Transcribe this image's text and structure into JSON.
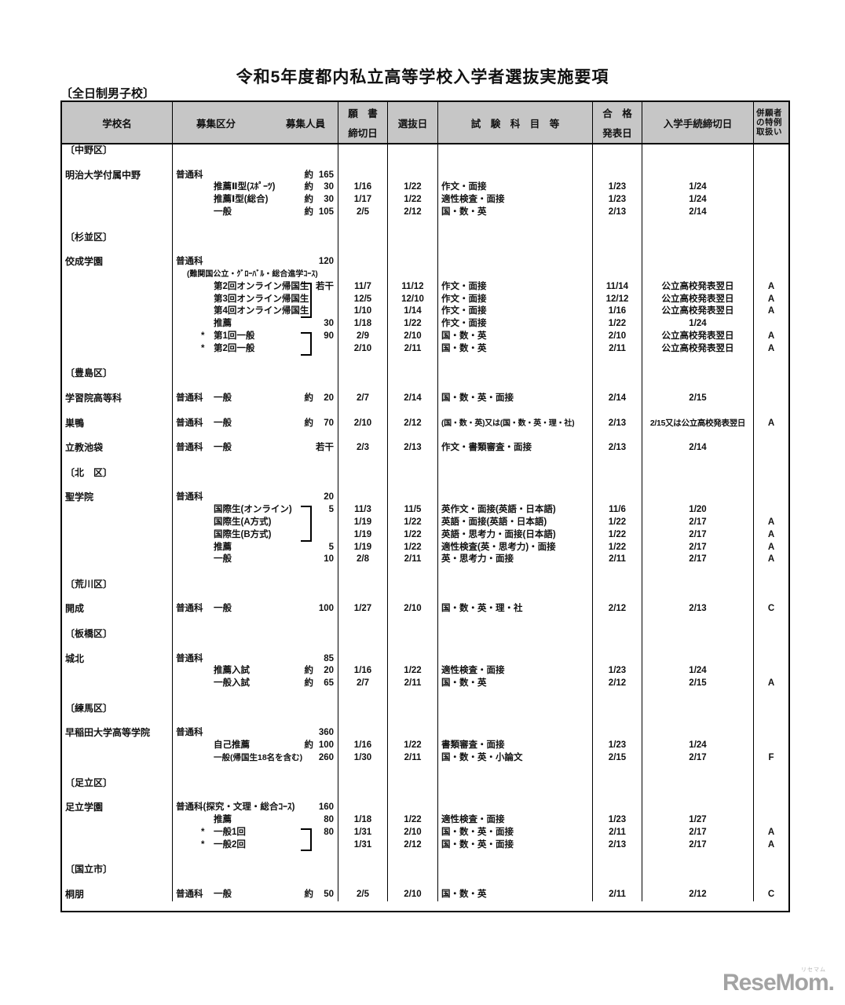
{
  "page": {
    "title": "令和5年度都内私立高等学校入学者選抜実施要項",
    "subtitle": "〔全日制男子校〕",
    "logo_text": "ReseMom.",
    "logo_ruby": "リセマム"
  },
  "table": {
    "headers": {
      "school": "学校名",
      "category": "募集区分",
      "capacity": "募集人員",
      "app_top": "願　書",
      "app_bottom": "締切日",
      "selection": "選抜日",
      "subjects": "試　験　科　目　等",
      "ann_top": "合　格",
      "ann_bottom": "発表日",
      "procedure": "入学手続締切日",
      "special_line1": "併願者",
      "special_line2": "の特例",
      "special_line3": "取扱い"
    },
    "rows": [
      {
        "ward": "〔中野区〕"
      },
      {
        "blank": true
      },
      {
        "school": "明治大学付属中野",
        "category": "普通科",
        "approx": "約",
        "capacity": "165"
      },
      {
        "sub": "推薦Ⅱ型(ｽﾎﾟｰﾂ)",
        "approx": "約",
        "capacity": "30",
        "app_deadline": "1/16",
        "exam_date": "1/22",
        "subjects": "作文・面接",
        "announce_date": "1/23",
        "procedure_deadline": "1/24"
      },
      {
        "sub": "推薦Ⅰ型(総合)",
        "approx": "約",
        "capacity": "30",
        "app_deadline": "1/17",
        "exam_date": "1/22",
        "subjects": "適性検査・面接",
        "announce_date": "1/23",
        "procedure_deadline": "1/24"
      },
      {
        "sub": "一般",
        "approx": "約",
        "capacity": "105",
        "app_deadline": "2/5",
        "exam_date": "2/12",
        "subjects": "国・数・英",
        "announce_date": "2/13",
        "procedure_deadline": "2/14"
      },
      {
        "blank": true
      },
      {
        "ward": "〔杉並区〕"
      },
      {
        "blank": true
      },
      {
        "school": "佼成学園",
        "category": "普通科",
        "capacity": "120"
      },
      {
        "note": "(難関国公立・ｸﾞﾛｰﾊﾞﾙ・総合進学ｺｰｽ)"
      },
      {
        "sub": "第2回オンライン帰国生",
        "bracket_rows": 3,
        "capacity": "若干",
        "app_deadline": "11/7",
        "exam_date": "11/12",
        "subjects": "作文・面接",
        "announce_date": "11/14",
        "procedure_deadline": "公立高校発表翌日",
        "special": "A"
      },
      {
        "sub": "第3回オンライン帰国生",
        "app_deadline": "12/5",
        "exam_date": "12/10",
        "subjects": "作文・面接",
        "announce_date": "12/12",
        "procedure_deadline": "公立高校発表翌日",
        "special": "A"
      },
      {
        "sub": "第4回オンライン帰国生",
        "app_deadline": "1/10",
        "exam_date": "1/14",
        "subjects": "作文・面接",
        "announce_date": "1/16",
        "procedure_deadline": "公立高校発表翌日",
        "special": "A"
      },
      {
        "sub": "推薦",
        "capacity": "30",
        "app_deadline": "1/18",
        "exam_date": "1/22",
        "subjects": "作文・面接",
        "announce_date": "1/22",
        "procedure_deadline": "1/24"
      },
      {
        "sub": "第1回一般",
        "star": true,
        "bracket_rows": 2,
        "capacity": "90",
        "app_deadline": "2/9",
        "exam_date": "2/10",
        "subjects": "国・数・英",
        "announce_date": "2/10",
        "procedure_deadline": "公立高校発表翌日",
        "special": "A"
      },
      {
        "sub": "第2回一般",
        "star": true,
        "app_deadline": "2/10",
        "exam_date": "2/11",
        "subjects": "国・数・英",
        "announce_date": "2/11",
        "procedure_deadline": "公立高校発表翌日",
        "special": "A"
      },
      {
        "blank": true
      },
      {
        "ward": "〔豊島区〕"
      },
      {
        "blank": true
      },
      {
        "school": "学習院高等科",
        "category": "普通科",
        "category_indent": "一般",
        "approx": "約",
        "capacity": "20",
        "app_deadline": "2/7",
        "exam_date": "2/14",
        "subjects": "国・数・英・面接",
        "announce_date": "2/14",
        "procedure_deadline": "2/15"
      },
      {
        "blank": true
      },
      {
        "school": "巣鴨",
        "category": "普通科",
        "category_indent": "一般",
        "approx": "約",
        "capacity": "70",
        "app_deadline": "2/10",
        "exam_date": "2/12",
        "subjects": "(国・数・英)又は(国・数・英・理・社)",
        "announce_date": "2/13",
        "procedure_deadline": "2/15又は公立高校発表翌日",
        "special": "A"
      },
      {
        "blank": true
      },
      {
        "school": "立教池袋",
        "category": "普通科",
        "category_indent": "一般",
        "capacity": "若干",
        "app_deadline": "2/3",
        "exam_date": "2/13",
        "subjects": "作文・書類審査・面接",
        "announce_date": "2/13",
        "procedure_deadline": "2/14"
      },
      {
        "blank": true
      },
      {
        "ward": "〔北　区〕"
      },
      {
        "blank": true
      },
      {
        "school": "聖学院",
        "category": "普通科",
        "capacity": "20"
      },
      {
        "sub": "国際生(オンライン)",
        "bracket_rows": 3,
        "capacity": "5",
        "app_deadline": "11/3",
        "exam_date": "11/5",
        "subjects": "英作文・面接(英語・日本語)",
        "announce_date": "11/6",
        "procedure_deadline": "1/20"
      },
      {
        "sub": "国際生(A方式)",
        "app_deadline": "1/19",
        "exam_date": "1/22",
        "subjects": "英語・面接(英語・日本語)",
        "announce_date": "1/22",
        "procedure_deadline": "2/17",
        "special": "A"
      },
      {
        "sub": "国際生(B方式)",
        "app_deadline": "1/19",
        "exam_date": "1/22",
        "subjects": "英語・思考力・面接(日本語)",
        "announce_date": "1/22",
        "procedure_deadline": "2/17",
        "special": "A"
      },
      {
        "sub": "推薦",
        "capacity": "5",
        "app_deadline": "1/19",
        "exam_date": "1/22",
        "subjects": "適性検査(英・思考力)・面接",
        "announce_date": "1/22",
        "procedure_deadline": "2/17",
        "special": "A"
      },
      {
        "sub": "一般",
        "capacity": "10",
        "app_deadline": "2/8",
        "exam_date": "2/11",
        "subjects": "英・思考力・面接",
        "announce_date": "2/11",
        "procedure_deadline": "2/17",
        "special": "A"
      },
      {
        "blank": true
      },
      {
        "ward": "〔荒川区〕"
      },
      {
        "blank": true
      },
      {
        "school": "開成",
        "category": "普通科",
        "category_indent": "一般",
        "capacity": "100",
        "app_deadline": "1/27",
        "exam_date": "2/10",
        "subjects": "国・数・英・理・社",
        "announce_date": "2/12",
        "procedure_deadline": "2/13",
        "special": "C"
      },
      {
        "blank": true
      },
      {
        "ward": "〔板橋区〕"
      },
      {
        "blank": true
      },
      {
        "school": "城北",
        "category": "普通科",
        "capacity": "85"
      },
      {
        "sub": "推薦入試",
        "approx": "約",
        "capacity": "20",
        "app_deadline": "1/16",
        "exam_date": "1/22",
        "subjects": "適性検査・面接",
        "announce_date": "1/23",
        "procedure_deadline": "1/24"
      },
      {
        "sub": "一般入試",
        "approx": "約",
        "capacity": "65",
        "app_deadline": "2/7",
        "exam_date": "2/11",
        "subjects": "国・数・英",
        "announce_date": "2/12",
        "procedure_deadline": "2/15",
        "special": "A"
      },
      {
        "blank": true
      },
      {
        "ward": "〔練馬区〕"
      },
      {
        "blank": true
      },
      {
        "school": "早稲田大学高等学院",
        "category": "普通科",
        "capacity": "360"
      },
      {
        "sub": "自己推薦",
        "approx": "約",
        "capacity": "100",
        "app_deadline": "1/16",
        "exam_date": "1/22",
        "subjects": "書類審査・面接",
        "announce_date": "1/23",
        "procedure_deadline": "1/24"
      },
      {
        "sub": "一般(帰国生18名を含む)",
        "small": true,
        "capacity": "260",
        "app_deadline": "1/30",
        "exam_date": "2/11",
        "subjects": "国・数・英・小論文",
        "announce_date": "2/15",
        "procedure_deadline": "2/17",
        "special": "F"
      },
      {
        "blank": true
      },
      {
        "ward": "〔足立区〕"
      },
      {
        "blank": true
      },
      {
        "school": "足立学園",
        "category": "普通科(探究・文理・総合ｺｰｽ)",
        "capacity": "160"
      },
      {
        "sub": "推薦",
        "capacity": "80",
        "app_deadline": "1/18",
        "exam_date": "1/22",
        "subjects": "適性検査・面接",
        "announce_date": "1/23",
        "procedure_deadline": "1/27"
      },
      {
        "sub": "一般1回",
        "star": true,
        "bracket_rows": 2,
        "capacity": "80",
        "app_deadline": "1/31",
        "exam_date": "2/10",
        "subjects": "国・数・英・面接",
        "announce_date": "2/11",
        "procedure_deadline": "2/17",
        "special": "A"
      },
      {
        "sub": "一般2回",
        "star": true,
        "app_deadline": "1/31",
        "exam_date": "2/12",
        "subjects": "国・数・英・面接",
        "announce_date": "2/13",
        "procedure_deadline": "2/17",
        "special": "A"
      },
      {
        "blank": true
      },
      {
        "ward": "〔国立市〕"
      },
      {
        "blank": true
      },
      {
        "school": "桐朋",
        "category": "普通科",
        "category_indent": "一般",
        "approx": "約",
        "capacity": "50",
        "app_deadline": "2/5",
        "exam_date": "2/10",
        "subjects": "国・数・英",
        "announce_date": "2/11",
        "procedure_deadline": "2/12",
        "special": "C"
      }
    ]
  }
}
